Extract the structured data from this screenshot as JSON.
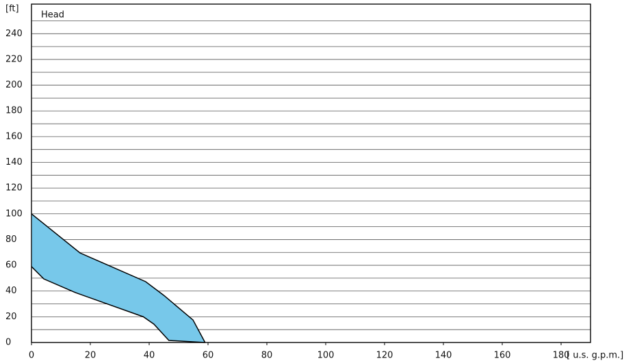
{
  "chart_data": {
    "type": "band",
    "y_unit": "[ft]",
    "x_unit": "[ u.s. g.p.m.]",
    "label": "Head",
    "xlim": [
      0,
      190
    ],
    "xticks": [
      0,
      20,
      40,
      60,
      80,
      100,
      120,
      140,
      160,
      180
    ],
    "ylim": [
      0,
      263
    ],
    "yticks": [
      0,
      20,
      40,
      60,
      80,
      100,
      120,
      140,
      160,
      180,
      200,
      220,
      240
    ],
    "ygrid": [
      10,
      30,
      50,
      70,
      90,
      110,
      130,
      150,
      170,
      190,
      210,
      230,
      250
    ],
    "grid": true,
    "color": "#77c8ea",
    "upper": {
      "x": [
        0,
        16.5,
        38.8,
        45,
        54.9,
        59
      ],
      "values": [
        100,
        69.6,
        47.3,
        36.6,
        17.5,
        0
      ]
    },
    "lower": {
      "x": [
        0,
        4.2,
        14.9,
        38,
        41.6,
        46.7,
        59
      ],
      "values": [
        59,
        49.4,
        38.8,
        20,
        14.3,
        1.6,
        0
      ]
    }
  }
}
